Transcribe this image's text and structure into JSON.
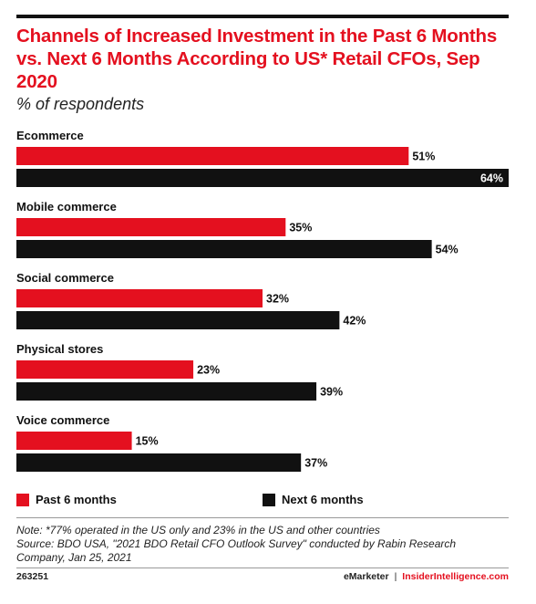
{
  "title": "Channels of Increased Investment in the Past 6 Months vs. Next 6 Months According to US* Retail CFOs, Sep 2020",
  "subtitle": "% of respondents",
  "chart_data": {
    "type": "bar",
    "orientation": "horizontal",
    "categories": [
      "Ecommerce",
      "Mobile commerce",
      "Social commerce",
      "Physical stores",
      "Voice commerce"
    ],
    "series": [
      {
        "name": "Past 6 months",
        "values": [
          51,
          35,
          32,
          23,
          15
        ],
        "color": "#e4101f"
      },
      {
        "name": "Next 6 months",
        "values": [
          64,
          54,
          42,
          39,
          37
        ],
        "color": "#111111"
      }
    ],
    "value_suffix": "%",
    "xlim": [
      0,
      64
    ],
    "grid": false,
    "legend_position": "bottom"
  },
  "note_lines": [
    "Note: *77% operated in the US only and 23% in the US and other countries",
    "Source: BDO USA, \"2021 BDO Retail CFO Outlook Survey\" conducted by Rabin Research",
    "Company, Jan 25, 2021"
  ],
  "footer": {
    "chart_id": "263251",
    "brand_left": "eMarketer",
    "separator": "|",
    "brand_right": "InsiderIntelligence.com"
  }
}
